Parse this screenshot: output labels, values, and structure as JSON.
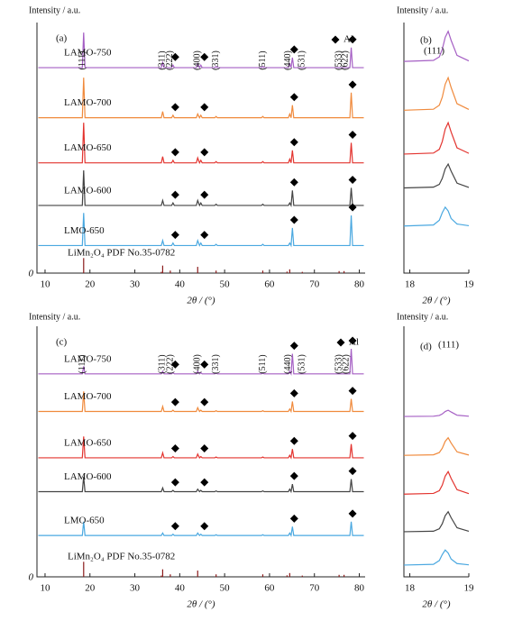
{
  "chart_data": [
    {
      "type": "line",
      "panel_label": "(a)",
      "ylabel": "Intensity / a.u.",
      "xlabel": "2θ / (°)",
      "origin_label": "0",
      "xlim": [
        8.2,
        81.3
      ],
      "xticks": [
        10,
        20,
        30,
        40,
        50,
        60,
        70,
        80
      ],
      "ylim": [
        0,
        100
      ],
      "x": [
        8.5,
        18.3,
        18.6,
        18.9,
        35.9,
        36.2,
        36.5,
        38.2,
        38.5,
        38.8,
        43.7,
        44.0,
        44.4,
        44.7,
        45.0,
        47.8,
        48.1,
        48.4,
        58.2,
        58.5,
        58.8,
        64.2,
        64.5,
        64.8,
        65.1,
        65.4,
        77.9,
        78.2,
        78.5,
        81
      ],
      "series": [
        {
          "name": "LAMO-750",
          "color": "#a55fc4",
          "values": [
            82,
            82,
            96,
            82,
            82,
            84,
            82,
            82,
            83,
            82,
            82,
            83.5,
            82,
            83,
            82,
            82,
            82.5,
            82,
            82,
            82.5,
            82,
            82,
            83.5,
            82,
            86,
            82,
            82,
            90,
            82,
            82
          ]
        },
        {
          "name": "LAMO-700",
          "color": "#f08a3c",
          "values": [
            62,
            62,
            78,
            62,
            62,
            64.5,
            62,
            62,
            63,
            62,
            62,
            63.5,
            62,
            63,
            62,
            62,
            62.5,
            62,
            62,
            62.5,
            62,
            62,
            63.5,
            62,
            67,
            62,
            62,
            72,
            62,
            62
          ]
        },
        {
          "name": "LAMO-650",
          "color": "#e3342f",
          "values": [
            44,
            44,
            60,
            44,
            44,
            46.5,
            44,
            44,
            45,
            44,
            44,
            46,
            44,
            45,
            44,
            44,
            44.5,
            44,
            44,
            44.5,
            44,
            44,
            45.5,
            44,
            49,
            44,
            44,
            52,
            44,
            44
          ]
        },
        {
          "name": "LAMO-600",
          "color": "#444444",
          "values": [
            27,
            27,
            41,
            27,
            27,
            29,
            27,
            27,
            28,
            27,
            27,
            29,
            27,
            28,
            27,
            27,
            27.5,
            27,
            27,
            27.5,
            27,
            27,
            28,
            27,
            33,
            27,
            27,
            34,
            27,
            27
          ]
        },
        {
          "name": "LMO-650",
          "color": "#4aa8e0",
          "values": [
            11,
            11,
            24,
            11,
            11,
            13,
            11,
            11,
            12,
            11,
            11,
            13,
            11,
            12,
            11,
            11,
            11.5,
            11,
            11,
            11.5,
            11,
            11,
            12,
            11,
            18,
            11,
            11,
            23,
            11,
            11
          ]
        }
      ],
      "reference": {
        "name": "LiMn₂O₄  PDF No.35-0782",
        "color": "#8b1a1a",
        "x": [
          18.6,
          35.9,
          36.2,
          37.9,
          44.0,
          48.1,
          58.5,
          63.9,
          64.5,
          67.3,
          75.5,
          76.6
        ],
        "values": [
          6,
          0.5,
          3,
          1,
          2.5,
          1,
          1,
          0.6,
          1.5,
          0.5,
          0.8,
          0.8
        ]
      },
      "hkl_labels": [
        {
          "label": "(111)",
          "x": 18.4
        },
        {
          "label": "(311)",
          "x": 36.2
        },
        {
          "label": "(222)",
          "x": 37.9
        },
        {
          "label": "(400)",
          "x": 44.0
        },
        {
          "label": "(331)",
          "x": 48.1
        },
        {
          "label": "(511)",
          "x": 58.5
        },
        {
          "label": "(440)",
          "x": 64.2
        },
        {
          "label": "(531)",
          "x": 67.3
        },
        {
          "label": "(533)",
          "x": 75.5
        },
        {
          "label": "(622)",
          "x": 76.9
        }
      ],
      "markers": {
        "name": "Al",
        "x": [
          39,
          45.5,
          65.5,
          78.5
        ]
      }
    },
    {
      "type": "line",
      "panel_label": "(b)",
      "ylabel": "Intensity / a.u.",
      "xlabel": "2θ / (°)",
      "peak_label": "(111)",
      "xlim": [
        17.9,
        19.0
      ],
      "xticks": [
        18,
        19
      ],
      "ylim": [
        0,
        100
      ],
      "x": [
        17.9,
        18.4,
        18.5,
        18.55,
        18.6,
        18.65,
        18.7,
        18.8,
        19.0
      ],
      "series": [
        {
          "color": "#a55fc4",
          "values": [
            84.5,
            84.9,
            86.3,
            89.3,
            94.1,
            96.5,
            92.9,
            86.9,
            84.7
          ]
        },
        {
          "color": "#f08a3c",
          "values": [
            65,
            65.4,
            67,
            70.2,
            75.4,
            78,
            74.1,
            67.6,
            65.3
          ]
        },
        {
          "color": "#e3342f",
          "values": [
            47.5,
            47.9,
            49.4,
            52.5,
            57.5,
            60,
            56.3,
            50,
            47.8
          ]
        },
        {
          "color": "#444444",
          "values": [
            34,
            34.3,
            35.4,
            37.8,
            41.6,
            43.5,
            40.7,
            35.9,
            34.2
          ]
        },
        {
          "color": "#4aa8e0",
          "values": [
            18.8,
            19.2,
            21.1,
            24.1,
            26.3,
            24.8,
            21.8,
            19.6,
            18.9
          ]
        }
      ]
    },
    {
      "type": "line",
      "panel_label": "(c)",
      "ylabel": "Intensity / a.u.",
      "xlabel": "2θ / (°)",
      "origin_label": "0",
      "xlim": [
        8.2,
        81.3
      ],
      "xticks": [
        10,
        20,
        30,
        40,
        50,
        60,
        70,
        80
      ],
      "ylim": [
        0,
        100
      ],
      "x": [
        8.5,
        18.3,
        18.6,
        18.9,
        35.9,
        36.2,
        36.5,
        38.2,
        38.5,
        38.8,
        43.7,
        44.0,
        44.4,
        44.7,
        45.0,
        47.8,
        48.1,
        48.4,
        58.2,
        58.5,
        58.8,
        64.2,
        64.5,
        64.8,
        65.1,
        65.4,
        77.9,
        78.2,
        78.5,
        81
      ],
      "series": [
        {
          "name": "LAMO-750",
          "color": "#a55fc4",
          "values": [
            81,
            81,
            84,
            81,
            81,
            82,
            81,
            81,
            81.5,
            81,
            81,
            82,
            81,
            81.5,
            81,
            81,
            81.3,
            81,
            81,
            81.3,
            81,
            81,
            82,
            81,
            89,
            81,
            81,
            91,
            81,
            81
          ]
        },
        {
          "name": "LAMO-700",
          "color": "#f08a3c",
          "values": [
            66,
            66,
            74,
            66,
            66,
            68,
            66,
            66,
            66.5,
            66,
            66,
            67.5,
            66,
            66.5,
            66,
            66,
            66.3,
            66,
            66,
            66.3,
            66,
            66,
            67,
            66,
            70,
            66,
            66,
            71,
            66,
            66
          ]
        },
        {
          "name": "LAMO-650",
          "color": "#e3342f",
          "values": [
            47.5,
            47.5,
            56,
            47.5,
            47.5,
            49.5,
            47.5,
            47.5,
            48,
            47.5,
            47.5,
            49,
            47.5,
            48,
            47.5,
            47.5,
            47.8,
            47.5,
            47.5,
            47.8,
            47.5,
            47.5,
            48.5,
            47.5,
            51,
            47.5,
            47.5,
            53,
            47.5,
            47.5
          ]
        },
        {
          "name": "LAMO-600",
          "color": "#444444",
          "values": [
            34,
            34,
            40,
            34,
            34,
            35.5,
            34,
            34,
            34.5,
            34,
            34,
            35,
            34,
            34.5,
            34,
            34,
            34.3,
            34,
            34,
            34.3,
            34,
            34,
            35,
            34,
            37,
            34,
            34,
            39,
            34,
            34
          ]
        },
        {
          "name": "LMO-650",
          "color": "#4aa8e0",
          "values": [
            16.5,
            16.5,
            22,
            16.5,
            16.5,
            17.5,
            16.5,
            16.5,
            17,
            16.5,
            16.5,
            17.5,
            16.5,
            17,
            16.5,
            16.5,
            16.8,
            16.5,
            16.5,
            16.8,
            16.5,
            16.5,
            17.5,
            16.5,
            20,
            16.5,
            16.5,
            22,
            16.5,
            16.5
          ]
        }
      ],
      "reference": {
        "name": "LiMn₂O₄  PDF No.35-0782",
        "color": "#8b1a1a",
        "x": [
          18.6,
          35.9,
          36.2,
          37.9,
          44.0,
          48.1,
          58.5,
          63.9,
          64.5,
          67.3,
          75.5,
          76.6
        ],
        "values": [
          6,
          0.5,
          3,
          1,
          2.5,
          1,
          1,
          0.6,
          1.5,
          0.5,
          0.8,
          0.8
        ]
      },
      "hkl_labels": [
        {
          "label": "(111)",
          "x": 18.4
        },
        {
          "label": "(311)",
          "x": 36.2
        },
        {
          "label": "(222)",
          "x": 38.0
        },
        {
          "label": "(400)",
          "x": 44.0
        },
        {
          "label": "(331)",
          "x": 48.1
        },
        {
          "label": "(511)",
          "x": 58.5
        },
        {
          "label": "(440)",
          "x": 64.2
        },
        {
          "label": "(531)",
          "x": 67.3
        },
        {
          "label": "(533)",
          "x": 75.5
        },
        {
          "label": "(622)",
          "x": 77.1
        }
      ],
      "markers": {
        "name": "Al",
        "x": [
          39,
          45.5,
          65.5,
          78.5
        ]
      }
    },
    {
      "type": "line",
      "panel_label": "(d)",
      "ylabel": "Intensity / a.u.",
      "xlabel": "2θ / (°)",
      "peak_label": "(111)",
      "xlim": [
        17.9,
        19.0
      ],
      "xticks": [
        18,
        19
      ],
      "ylim": [
        0,
        100
      ],
      "x": [
        17.9,
        18.4,
        18.5,
        18.55,
        18.6,
        18.65,
        18.7,
        18.8,
        19.0
      ],
      "series": [
        {
          "color": "#a55fc4",
          "values": [
            64,
            64.1,
            64.4,
            65,
            66,
            66.5,
            65.8,
            64.5,
            64.1
          ]
        },
        {
          "color": "#f08a3c",
          "values": [
            48.5,
            48.7,
            49.6,
            51.3,
            54.1,
            55.5,
            53.4,
            49.9,
            48.6
          ]
        },
        {
          "color": "#e3342f",
          "values": [
            33,
            33.3,
            34.4,
            36.6,
            40.2,
            42,
            39.3,
            34.8,
            33.2
          ]
        },
        {
          "color": "#444444",
          "values": [
            18,
            18.2,
            19.2,
            21.2,
            24.4,
            26,
            23.6,
            19.6,
            18.2
          ]
        },
        {
          "color": "#4aa8e0",
          "values": [
            4.7,
            5,
            6.5,
            8.9,
            10.7,
            9.5,
            7.1,
            5.3,
            4.8
          ]
        }
      ]
    }
  ]
}
